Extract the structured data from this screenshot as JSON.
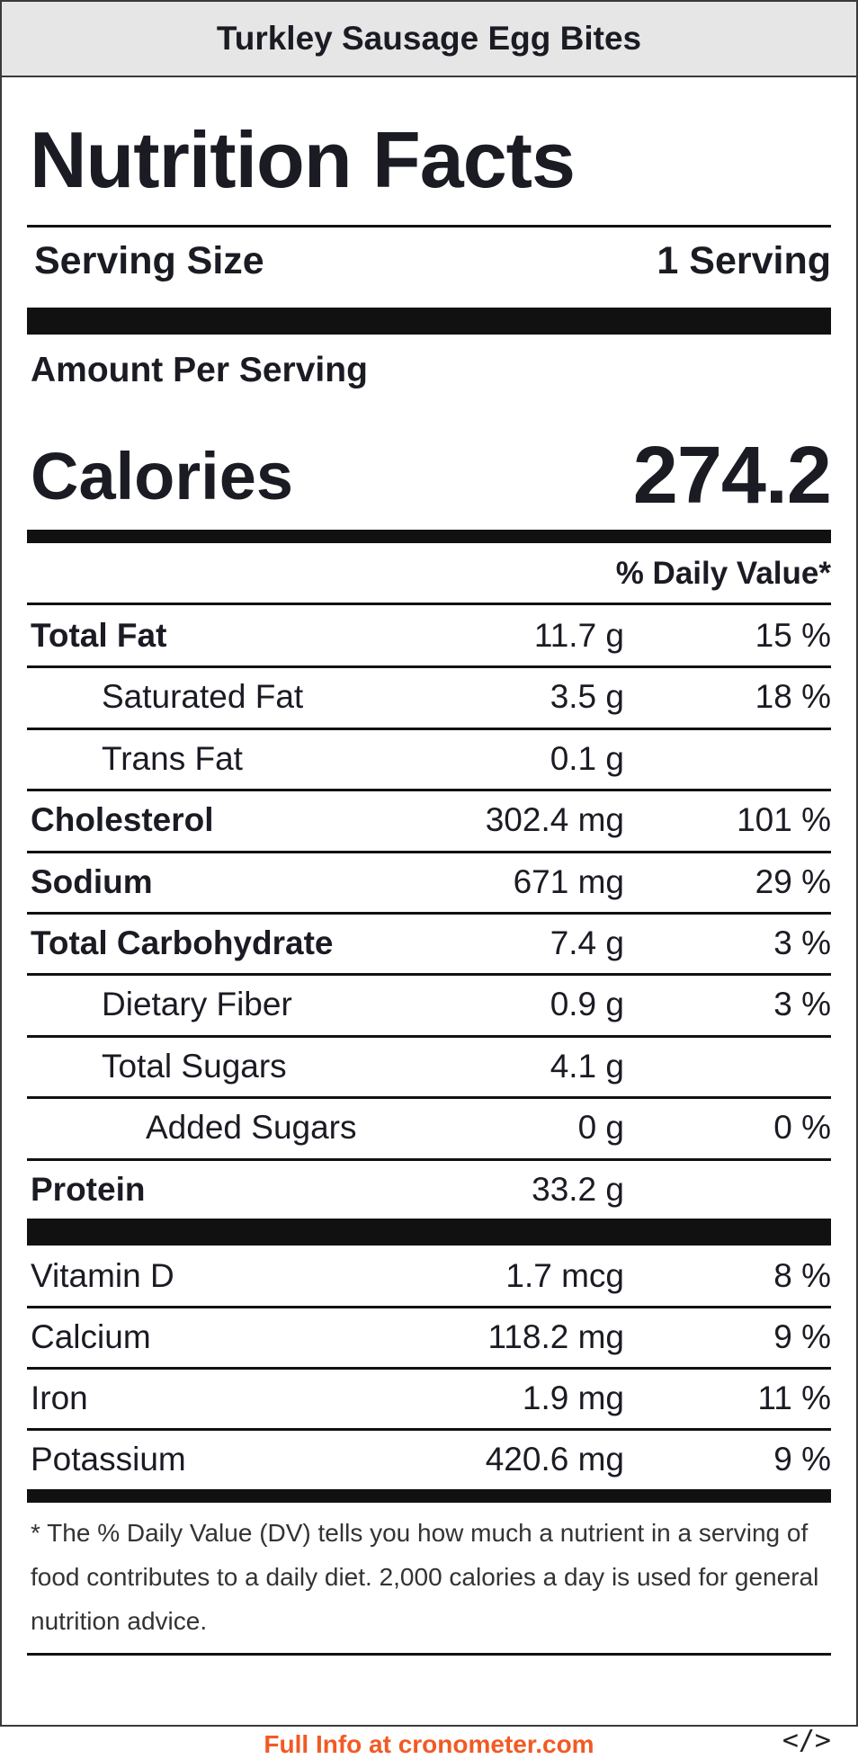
{
  "header": {
    "title": "Turkley Sausage Egg Bites"
  },
  "label": {
    "heading": "Nutrition Facts",
    "serving_size_label": "Serving Size",
    "serving_size_value": "1 Serving",
    "amount_per_serving": "Amount Per Serving",
    "calories_label": "Calories",
    "calories_value": "274.2",
    "daily_value_header": "% Daily Value*"
  },
  "nutrients": [
    {
      "name": "Total Fat",
      "amount": "11.7 g",
      "dv": "15 %",
      "style": "b"
    },
    {
      "name": "Saturated Fat",
      "amount": "3.5 g",
      "dv": "18 %",
      "style": "i1"
    },
    {
      "name": "Trans Fat",
      "amount": "0.1 g",
      "dv": "",
      "style": "i1"
    },
    {
      "name": "Cholesterol",
      "amount": "302.4 mg",
      "dv": "101 %",
      "style": "b"
    },
    {
      "name": "Sodium",
      "amount": "671 mg",
      "dv": "29 %",
      "style": "b"
    },
    {
      "name": "Total Carbohydrate",
      "amount": "7.4 g",
      "dv": "3 %",
      "style": "b"
    },
    {
      "name": "Dietary Fiber",
      "amount": "0.9 g",
      "dv": "3 %",
      "style": "i1"
    },
    {
      "name": "Total Sugars",
      "amount": "4.1 g",
      "dv": "",
      "style": "i1"
    },
    {
      "name": "Added Sugars",
      "amount": "0 g",
      "dv": "0 %",
      "style": "i2"
    },
    {
      "name": "Protein",
      "amount": "33.2 g",
      "dv": "",
      "style": "b"
    }
  ],
  "micronutrients": [
    {
      "name": "Vitamin D",
      "amount": "1.7 mcg",
      "dv": "8 %"
    },
    {
      "name": "Calcium",
      "amount": "118.2 mg",
      "dv": "9 %"
    },
    {
      "name": "Iron",
      "amount": "1.9 mg",
      "dv": "11 %"
    },
    {
      "name": "Potassium",
      "amount": "420.6 mg",
      "dv": "9 %"
    }
  ],
  "footnote": "* The % Daily Value (DV) tells you how much a nutrient in a serving of food contributes to a daily diet. 2,000 calories a day is used for general nutrition advice.",
  "footer": {
    "link_text": "Full Info at cronometer.com",
    "embed_icon": "</>"
  },
  "colors": {
    "link": "#f15a24",
    "header_bg": "#e6e6e6"
  }
}
